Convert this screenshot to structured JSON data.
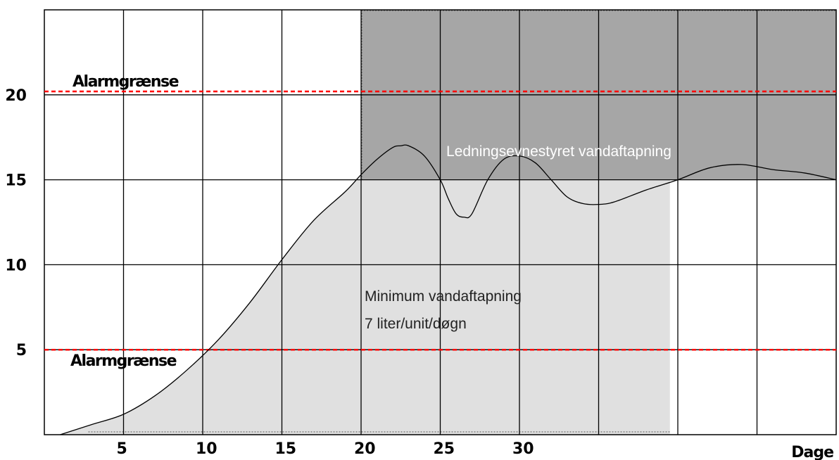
{
  "chart_data": {
    "type": "line",
    "title": "",
    "xlabel": "Dage",
    "ylabel": "",
    "xlim": [
      0,
      50
    ],
    "ylim": [
      0,
      25
    ],
    "x_ticks": [
      "5",
      "10",
      "15",
      "20",
      "25",
      "30"
    ],
    "y_ticks": [
      "5",
      "10",
      "15",
      "20"
    ],
    "grid": true,
    "series": [
      {
        "x": [
          1,
          3,
          5,
          7,
          9,
          11,
          13,
          15,
          17,
          19,
          20,
          21,
          22,
          22.5,
          23,
          24,
          25,
          25.5,
          26,
          26.5,
          27,
          28,
          29,
          30,
          31,
          32,
          33,
          34,
          35,
          36,
          38,
          40,
          42,
          44,
          46,
          48,
          50
        ],
        "y": [
          0,
          0.6,
          1.2,
          2.3,
          3.8,
          5.6,
          7.8,
          10.3,
          12.6,
          14.3,
          15.3,
          16.2,
          16.9,
          17.0,
          17.0,
          16.4,
          15.0,
          13.9,
          13.0,
          12.8,
          13.0,
          15.0,
          16.2,
          16.4,
          16.0,
          15.0,
          14.0,
          13.6,
          13.55,
          13.7,
          14.4,
          15.0,
          15.7,
          15.9,
          15.6,
          15.4,
          15.0
        ]
      }
    ],
    "alarm_lines": [
      {
        "label": "Alarmgrænse",
        "y": 20.2,
        "color": "#ff0000"
      },
      {
        "label": "Alarmgrænse",
        "y": 5,
        "color": "#ff0000"
      }
    ],
    "regions": [
      {
        "label": "Ledningsevnestyret vandaftapning",
        "x_range": [
          20,
          50
        ],
        "y_range": [
          15,
          25
        ],
        "color": "#a6a6a6"
      },
      {
        "label_lines": [
          "Minimum vandaftapning",
          "7 liter/unit/døgn"
        ],
        "x_range": [
          0,
          39.5
        ],
        "y_range": [
          0,
          15
        ],
        "color": "#e0e0e0"
      }
    ]
  }
}
